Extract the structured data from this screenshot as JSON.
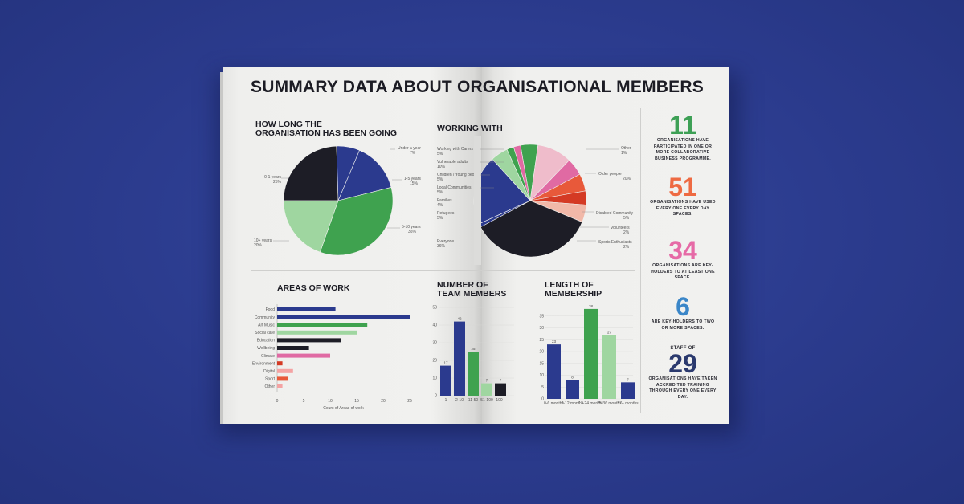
{
  "title": "SUMMARY DATA ABOUT ORGANISATIONAL MEMBERS",
  "colors": {
    "background": "#2b3b8d",
    "page": "#f0f0ee",
    "navy": "#2b3a8e",
    "green": "#3fa24f",
    "light_green": "#9fd6a0",
    "black": "#1d1d26",
    "orange": "#e8593a",
    "pink": "#e06aa3",
    "stat_green": "#3da055",
    "stat_orange": "#ee6a42",
    "stat_pink": "#e66aa6",
    "stat_blue": "#3a86c8",
    "stat_navy": "#2b3a6e"
  },
  "chart_data": [
    {
      "type": "pie",
      "title_line1": "HOW LONG THE",
      "title_line2": "ORGANISATION HAS BEEN GOING",
      "labels": [
        "0-1 years",
        "Under a year",
        "1-5 years",
        "5-10 years",
        "10+ years"
      ],
      "pcts": [
        "25%",
        "7%",
        "15%",
        "35%",
        "20%"
      ],
      "values": [
        25,
        7,
        15,
        35,
        20
      ],
      "slice_colors": [
        "#1d1d26",
        "#2b3a8e",
        "#2b3a8e",
        "#3fa24f",
        "#9fd6a0"
      ]
    },
    {
      "type": "pie",
      "title": "WORKING WITH",
      "labels": [
        "Working with Carers",
        "Vulnerable adults",
        "Children / Young people",
        "Local Communities",
        "Families",
        "Refugees",
        "Everyone",
        "Other",
        "Older people",
        "Disabled Community",
        "Volunteers",
        "Sports Enthusiasts"
      ],
      "pcts": [
        "5%",
        "10%",
        "5%",
        "5%",
        "4%",
        "5%",
        "36%",
        "1%",
        "20%",
        "5%",
        "2%",
        "2%"
      ],
      "values": [
        5,
        10,
        5,
        5,
        4,
        5,
        36,
        1,
        20,
        5,
        2,
        2
      ],
      "slice_colors": [
        "#3fa24f",
        "#efbccb",
        "#e06aa3",
        "#e8593a",
        "#d43a24",
        "#f1b8a8",
        "#1d1d26",
        "#2b3a8e",
        "#2b3a8e",
        "#9fd6a0",
        "#3fa24f",
        "#e06aa3"
      ]
    },
    {
      "type": "bar",
      "orientation": "horizontal",
      "title": "AREAS OF WORK",
      "xlabel": "Count of Areas of work",
      "categories": [
        "Food",
        "Community",
        "Art Music",
        "Social care",
        "Education",
        "Wellbeing",
        "Climate",
        "Environment",
        "Digital",
        "Sport",
        "Other"
      ],
      "values": [
        11,
        25,
        17,
        15,
        12,
        6,
        10,
        1,
        3,
        2,
        1
      ],
      "bar_colors": [
        "#2b3a8e",
        "#2b3a8e",
        "#3fa24f",
        "#9fd6a0",
        "#1d1d26",
        "#1d1d26",
        "#e06aa3",
        "#d43a24",
        "#f4a3a3",
        "#e8593a",
        "#f4a3a3"
      ],
      "xticks": [
        0,
        5,
        10,
        15,
        20,
        25
      ],
      "xlim": [
        0,
        25
      ]
    },
    {
      "type": "bar",
      "title_line1": "NUMBER OF",
      "title_line2": "TEAM MEMBERS",
      "categories": [
        "1",
        "2-10",
        "11-50",
        "51-100",
        "100+"
      ],
      "values": [
        17,
        42,
        25,
        7,
        7
      ],
      "value_labels": [
        "17",
        "42",
        "25",
        "7",
        "7"
      ],
      "bar_colors": [
        "#2b3a8e",
        "#2b3a8e",
        "#3fa24f",
        "#9fd6a0",
        "#1d1d26"
      ],
      "yticks": [
        0,
        10,
        20,
        30,
        40,
        50
      ],
      "ylim": [
        0,
        50
      ]
    },
    {
      "type": "bar",
      "title_line1": "LENGTH OF",
      "title_line2": "MEMBERSHIP",
      "categories": [
        "0-6 months",
        "7-12 months",
        "13-24 months",
        "25-36 months",
        "37+ months"
      ],
      "values": [
        23,
        8,
        38,
        27,
        7
      ],
      "value_labels": [
        "23",
        "8",
        "38",
        "27",
        "7"
      ],
      "bar_colors": [
        "#2b3a8e",
        "#2b3a8e",
        "#3fa24f",
        "#9fd6a0",
        "#2b3a8e"
      ],
      "yticks": [
        0,
        5,
        10,
        15,
        20,
        25,
        30,
        35
      ],
      "ylim": [
        0,
        40
      ]
    }
  ],
  "stats": [
    {
      "number": "11",
      "text": "ORGANISATIONS HAVE PARTICIPATED IN ONE OR MORE COLLABORATIVE BUSINESS PROGRAMME.",
      "color": "#3da055"
    },
    {
      "number": "51",
      "text": "ORGANISATIONS HAVE USED EVERY ONE EVERY DAY SPACES.",
      "color": "#ee6a42"
    },
    {
      "number": "34",
      "text": "ORGANISATIONS ARE KEY-HOLDERS TO AT LEAST ONE SPACE.",
      "color": "#e66aa6"
    },
    {
      "number": "6",
      "text": "ARE KEY-HOLDERS TO TWO OR MORE SPACES.",
      "color": "#3a86c8"
    },
    {
      "prefix": "STAFF OF",
      "number": "29",
      "text": "ORGANISATIONS HAVE TAKEN ACCREDITED TRAINING THROUGH EVERY ONE EVERY DAY.",
      "color": "#2b3a6e"
    }
  ]
}
